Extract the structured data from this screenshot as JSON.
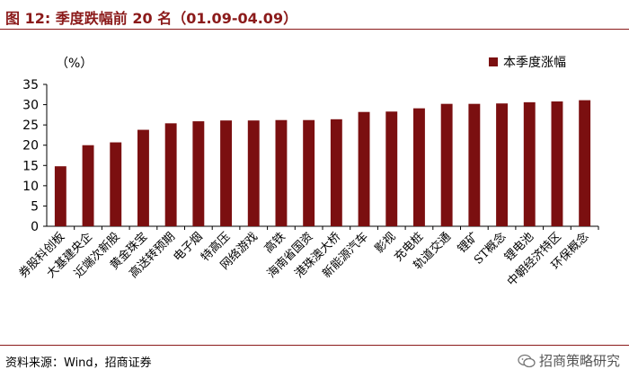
{
  "header": {
    "title": "图 12: 季度跌幅前 20 名（01.09-04.09）"
  },
  "footer": {
    "source": "资料来源：Wind，招商证券",
    "watermark": "招商策略研究"
  },
  "colors": {
    "accent": "#8b1a1a",
    "bar": "#7b0f10"
  },
  "chart_data": {
    "type": "bar",
    "ylabel": "（%）",
    "ylim": [
      0,
      35
    ],
    "yticks": [
      "0",
      "5",
      "10",
      "15",
      "20",
      "25",
      "30",
      "35"
    ],
    "grid": false,
    "legend_position": "top-right",
    "categories": [
      "券股科创板",
      "大基建央企",
      "近端次新股",
      "黄金珠宝",
      "高送转预期",
      "电子烟",
      "特高压",
      "网络游戏",
      "高铁",
      "海南省国资",
      "港珠澳大桥",
      "新能源汽车",
      "影视",
      "充电桩",
      "轨道交通",
      "锂矿",
      "ST概念",
      "锂电池",
      "中朝经济特区",
      "环保概念"
    ],
    "series": [
      {
        "name": "本季度涨幅",
        "values": [
          14.8,
          20.0,
          20.7,
          23.8,
          25.4,
          25.9,
          26.1,
          26.1,
          26.2,
          26.2,
          26.4,
          28.2,
          28.3,
          29.1,
          30.2,
          30.2,
          30.3,
          30.6,
          30.8,
          31.1
        ]
      }
    ]
  }
}
